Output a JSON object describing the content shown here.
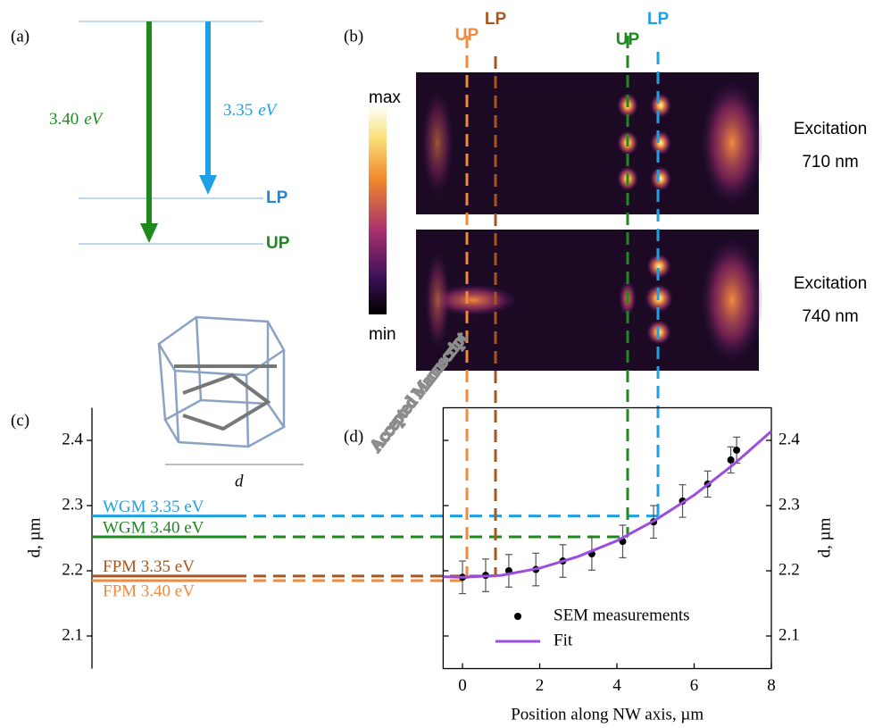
{
  "panel_labels": [
    "(a)",
    "(b)",
    "(c)",
    "(d)"
  ],
  "energy_diagram": {
    "transitions": [
      {
        "value": "3.40",
        "unit": "eV",
        "color": "#1e8a1e"
      },
      {
        "value": "3.35",
        "unit": "eV",
        "color": "#1ea0e6"
      }
    ],
    "levels": [
      {
        "label": "LP",
        "color": "#1e88d6"
      },
      {
        "label": "UP",
        "color": "#1e8a1e"
      }
    ]
  },
  "maps": {
    "mode_labels": [
      {
        "label": "UP",
        "color": "#f08a3c"
      },
      {
        "label": "LP",
        "color": "#a9561e"
      },
      {
        "label": "UP",
        "color": "#1e8a1e"
      },
      {
        "label": "LP",
        "color": "#1ea0e6"
      }
    ],
    "colorbar": {
      "max": "max",
      "min": "min"
    },
    "rows": [
      {
        "label": [
          "Excitation",
          "710 nm"
        ]
      },
      {
        "label": [
          "Excitation",
          "740 nm"
        ]
      }
    ]
  },
  "prism_label": "d",
  "watermark": "Accepted Manuscript",
  "chart_data": [
    {
      "type": "levels",
      "ylabel": "d, µm",
      "ylim": [
        2.05,
        2.45
      ],
      "yticks": [
        2.1,
        2.2,
        2.3,
        2.4
      ],
      "series": [
        {
          "name": "WGM 3.35 eV",
          "color": "#1ea0e6",
          "value": 2.284
        },
        {
          "name": "WGM 3.40 eV",
          "color": "#1e8a1e",
          "value": 2.252
        },
        {
          "name": "FPM 3.35 eV",
          "color": "#a9561e",
          "value": 2.192
        },
        {
          "name": "FPM 3.40 eV",
          "color": "#f08a3c",
          "value": 2.185
        }
      ]
    },
    {
      "type": "scatter",
      "xlabel": "Position along NW axis, µm",
      "ylabel": "d, µm",
      "xlim": [
        -0.5,
        8
      ],
      "ylim": [
        2.05,
        2.45
      ],
      "xticks": [
        0,
        2,
        4,
        6,
        8
      ],
      "yticks": [
        2.1,
        2.2,
        2.3,
        2.4
      ],
      "legend": "lower right",
      "series": [
        {
          "name": "SEM measurements",
          "color": "#000000",
          "x": [
            0,
            0.6,
            1.2,
            1.9,
            2.6,
            3.35,
            4.15,
            4.95,
            5.7,
            6.35,
            6.95,
            7.1
          ],
          "values": [
            2.19,
            2.193,
            2.2,
            2.202,
            2.215,
            2.226,
            2.245,
            2.275,
            2.307,
            2.333,
            2.37,
            2.385
          ],
          "errors": [
            0.025,
            0.025,
            0.025,
            0.025,
            0.025,
            0.025,
            0.025,
            0.025,
            0.025,
            0.02,
            0.02,
            0.02
          ]
        },
        {
          "name": "Fit",
          "color": "#9b4de0",
          "x": [
            -0.5,
            0,
            1,
            2,
            3,
            4,
            5,
            6,
            7,
            8
          ],
          "values": [
            2.191,
            2.19,
            2.193,
            2.204,
            2.222,
            2.246,
            2.278,
            2.316,
            2.362,
            2.414
          ]
        }
      ]
    }
  ]
}
